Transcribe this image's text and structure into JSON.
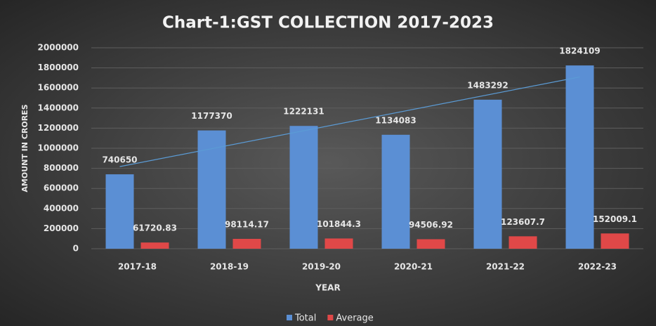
{
  "chart_data": {
    "type": "bar",
    "title": "Chart-1:GST COLLECTION 2017-2023",
    "x_label": "YEAR",
    "y_label": "AMOUNT IN CRORES",
    "categories": [
      "2017-18",
      "2018-19",
      "2019-20",
      "2020-21",
      "2021-22",
      "2022-23"
    ],
    "series": [
      {
        "name": "Total",
        "color": "#5b8fd4",
        "values": [
          740650,
          1177370,
          1222131,
          1134083,
          1483292,
          1824109
        ]
      },
      {
        "name": "Average",
        "color": "#e04848",
        "values": [
          61720.83,
          98114.17,
          101844.3,
          94506.92,
          123607.7,
          152009.1
        ]
      }
    ],
    "ylim": [
      0,
      2000000
    ],
    "yticks": [
      0,
      200000,
      400000,
      600000,
      800000,
      1000000,
      1200000,
      1400000,
      1600000,
      1800000,
      2000000
    ],
    "grid": true,
    "trendline": {
      "series": 0,
      "type": "linear",
      "color": "#5b9bd5"
    },
    "legend": "bottom"
  }
}
